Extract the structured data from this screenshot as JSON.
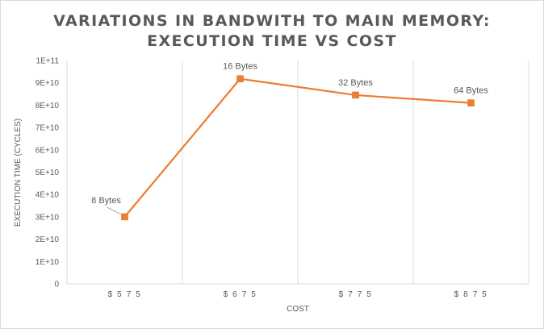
{
  "chart_data": {
    "type": "line",
    "title_lines": [
      "VARIATIONS IN BANDWITH TO MAIN MEMORY:",
      "EXECUTION TIME VS COST"
    ],
    "xlabel": "COST",
    "ylabel": "EXECUTION TIME (CYCLES)",
    "categories": [
      "$575",
      "$675",
      "$775",
      "$875"
    ],
    "y_ticks": [
      "0",
      "1E+10",
      "2E+10",
      "3E+10",
      "4E+10",
      "5E+10",
      "6E+10",
      "7E+10",
      "8E+10",
      "9E+10",
      "1E+11"
    ],
    "ylim": [
      0,
      100000000000
    ],
    "series": [
      {
        "values": [
          30000000000,
          91800000000,
          84500000000,
          81000000000
        ],
        "data_labels": [
          "8 Bytes",
          "16 Bytes",
          "32 Bytes",
          "64 Bytes"
        ],
        "color": "#ed7d31"
      }
    ],
    "grid": "vertical category separators only",
    "legend": "none"
  }
}
